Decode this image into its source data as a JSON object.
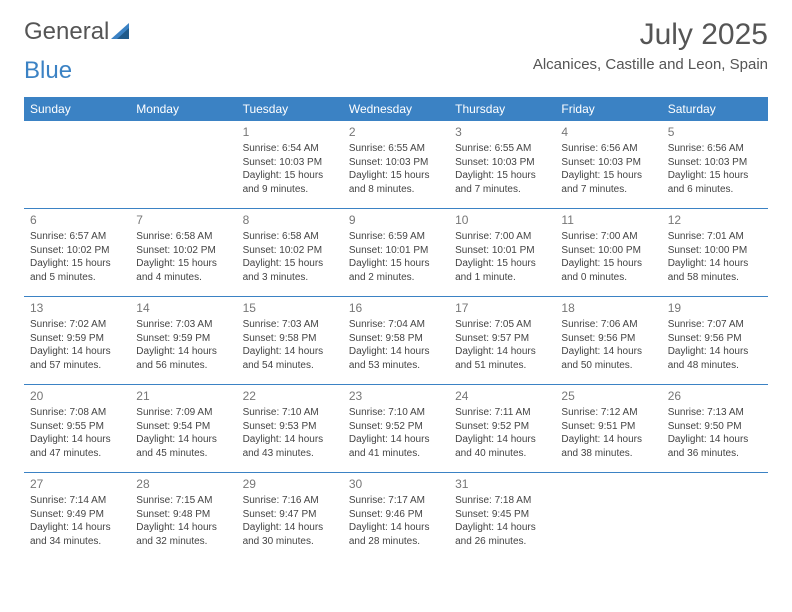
{
  "logo": {
    "text1": "General",
    "text2": "Blue"
  },
  "title": "July 2025",
  "location": "Alcanices, Castille and Leon, Spain",
  "colors": {
    "header_bg": "#3b82c4",
    "header_text": "#ffffff",
    "accent": "#3b82c4",
    "body_text": "#444444",
    "daynum": "#777777"
  },
  "weekdays": [
    "Sunday",
    "Monday",
    "Tuesday",
    "Wednesday",
    "Thursday",
    "Friday",
    "Saturday"
  ],
  "weeks": [
    [
      null,
      null,
      {
        "n": "1",
        "sr": "Sunrise: 6:54 AM",
        "ss": "Sunset: 10:03 PM",
        "d1": "Daylight: 15 hours",
        "d2": "and 9 minutes."
      },
      {
        "n": "2",
        "sr": "Sunrise: 6:55 AM",
        "ss": "Sunset: 10:03 PM",
        "d1": "Daylight: 15 hours",
        "d2": "and 8 minutes."
      },
      {
        "n": "3",
        "sr": "Sunrise: 6:55 AM",
        "ss": "Sunset: 10:03 PM",
        "d1": "Daylight: 15 hours",
        "d2": "and 7 minutes."
      },
      {
        "n": "4",
        "sr": "Sunrise: 6:56 AM",
        "ss": "Sunset: 10:03 PM",
        "d1": "Daylight: 15 hours",
        "d2": "and 7 minutes."
      },
      {
        "n": "5",
        "sr": "Sunrise: 6:56 AM",
        "ss": "Sunset: 10:03 PM",
        "d1": "Daylight: 15 hours",
        "d2": "and 6 minutes."
      }
    ],
    [
      {
        "n": "6",
        "sr": "Sunrise: 6:57 AM",
        "ss": "Sunset: 10:02 PM",
        "d1": "Daylight: 15 hours",
        "d2": "and 5 minutes."
      },
      {
        "n": "7",
        "sr": "Sunrise: 6:58 AM",
        "ss": "Sunset: 10:02 PM",
        "d1": "Daylight: 15 hours",
        "d2": "and 4 minutes."
      },
      {
        "n": "8",
        "sr": "Sunrise: 6:58 AM",
        "ss": "Sunset: 10:02 PM",
        "d1": "Daylight: 15 hours",
        "d2": "and 3 minutes."
      },
      {
        "n": "9",
        "sr": "Sunrise: 6:59 AM",
        "ss": "Sunset: 10:01 PM",
        "d1": "Daylight: 15 hours",
        "d2": "and 2 minutes."
      },
      {
        "n": "10",
        "sr": "Sunrise: 7:00 AM",
        "ss": "Sunset: 10:01 PM",
        "d1": "Daylight: 15 hours",
        "d2": "and 1 minute."
      },
      {
        "n": "11",
        "sr": "Sunrise: 7:00 AM",
        "ss": "Sunset: 10:00 PM",
        "d1": "Daylight: 15 hours",
        "d2": "and 0 minutes."
      },
      {
        "n": "12",
        "sr": "Sunrise: 7:01 AM",
        "ss": "Sunset: 10:00 PM",
        "d1": "Daylight: 14 hours",
        "d2": "and 58 minutes."
      }
    ],
    [
      {
        "n": "13",
        "sr": "Sunrise: 7:02 AM",
        "ss": "Sunset: 9:59 PM",
        "d1": "Daylight: 14 hours",
        "d2": "and 57 minutes."
      },
      {
        "n": "14",
        "sr": "Sunrise: 7:03 AM",
        "ss": "Sunset: 9:59 PM",
        "d1": "Daylight: 14 hours",
        "d2": "and 56 minutes."
      },
      {
        "n": "15",
        "sr": "Sunrise: 7:03 AM",
        "ss": "Sunset: 9:58 PM",
        "d1": "Daylight: 14 hours",
        "d2": "and 54 minutes."
      },
      {
        "n": "16",
        "sr": "Sunrise: 7:04 AM",
        "ss": "Sunset: 9:58 PM",
        "d1": "Daylight: 14 hours",
        "d2": "and 53 minutes."
      },
      {
        "n": "17",
        "sr": "Sunrise: 7:05 AM",
        "ss": "Sunset: 9:57 PM",
        "d1": "Daylight: 14 hours",
        "d2": "and 51 minutes."
      },
      {
        "n": "18",
        "sr": "Sunrise: 7:06 AM",
        "ss": "Sunset: 9:56 PM",
        "d1": "Daylight: 14 hours",
        "d2": "and 50 minutes."
      },
      {
        "n": "19",
        "sr": "Sunrise: 7:07 AM",
        "ss": "Sunset: 9:56 PM",
        "d1": "Daylight: 14 hours",
        "d2": "and 48 minutes."
      }
    ],
    [
      {
        "n": "20",
        "sr": "Sunrise: 7:08 AM",
        "ss": "Sunset: 9:55 PM",
        "d1": "Daylight: 14 hours",
        "d2": "and 47 minutes."
      },
      {
        "n": "21",
        "sr": "Sunrise: 7:09 AM",
        "ss": "Sunset: 9:54 PM",
        "d1": "Daylight: 14 hours",
        "d2": "and 45 minutes."
      },
      {
        "n": "22",
        "sr": "Sunrise: 7:10 AM",
        "ss": "Sunset: 9:53 PM",
        "d1": "Daylight: 14 hours",
        "d2": "and 43 minutes."
      },
      {
        "n": "23",
        "sr": "Sunrise: 7:10 AM",
        "ss": "Sunset: 9:52 PM",
        "d1": "Daylight: 14 hours",
        "d2": "and 41 minutes."
      },
      {
        "n": "24",
        "sr": "Sunrise: 7:11 AM",
        "ss": "Sunset: 9:52 PM",
        "d1": "Daylight: 14 hours",
        "d2": "and 40 minutes."
      },
      {
        "n": "25",
        "sr": "Sunrise: 7:12 AM",
        "ss": "Sunset: 9:51 PM",
        "d1": "Daylight: 14 hours",
        "d2": "and 38 minutes."
      },
      {
        "n": "26",
        "sr": "Sunrise: 7:13 AM",
        "ss": "Sunset: 9:50 PM",
        "d1": "Daylight: 14 hours",
        "d2": "and 36 minutes."
      }
    ],
    [
      {
        "n": "27",
        "sr": "Sunrise: 7:14 AM",
        "ss": "Sunset: 9:49 PM",
        "d1": "Daylight: 14 hours",
        "d2": "and 34 minutes."
      },
      {
        "n": "28",
        "sr": "Sunrise: 7:15 AM",
        "ss": "Sunset: 9:48 PM",
        "d1": "Daylight: 14 hours",
        "d2": "and 32 minutes."
      },
      {
        "n": "29",
        "sr": "Sunrise: 7:16 AM",
        "ss": "Sunset: 9:47 PM",
        "d1": "Daylight: 14 hours",
        "d2": "and 30 minutes."
      },
      {
        "n": "30",
        "sr": "Sunrise: 7:17 AM",
        "ss": "Sunset: 9:46 PM",
        "d1": "Daylight: 14 hours",
        "d2": "and 28 minutes."
      },
      {
        "n": "31",
        "sr": "Sunrise: 7:18 AM",
        "ss": "Sunset: 9:45 PM",
        "d1": "Daylight: 14 hours",
        "d2": "and 26 minutes."
      },
      null,
      null
    ]
  ]
}
